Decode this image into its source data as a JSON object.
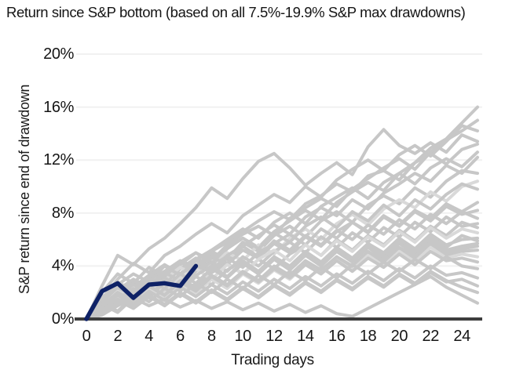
{
  "chart_data": {
    "type": "line",
    "title": "Return since S&P bottom (based on all 7.5%-19.9% S&P max drawdowns)",
    "xlabel": "Trading days",
    "ylabel": "S&P return since end of drawdown",
    "x_tick_values": [
      0,
      2,
      4,
      6,
      8,
      10,
      12,
      14,
      16,
      18,
      20,
      22,
      24
    ],
    "x_tick_labels": [
      "0",
      "2",
      "4",
      "6",
      "8",
      "10",
      "12",
      "14",
      "16",
      "18",
      "20",
      "22",
      "24"
    ],
    "y_tick_values": [
      0,
      4,
      8,
      12,
      16,
      20
    ],
    "y_tick_labels": [
      "0%",
      "4%",
      "8%",
      "12%",
      "16%",
      "20%"
    ],
    "xlim": [
      0,
      25
    ],
    "ylim": [
      0,
      20
    ],
    "grid": "horizontal",
    "legend": "none",
    "colors": {
      "historical_line": "#c7c7c7",
      "historical_line_light": "#d9d9d9",
      "highlight_line": "#0e2166",
      "axis_line": "#3d3d3d",
      "gridline": "#f1f1f1",
      "text": "#151515"
    },
    "highlight_series": {
      "role": "current-recovery",
      "days": [
        0,
        1,
        2,
        3,
        4,
        5,
        6,
        7
      ],
      "values": [
        0,
        2.1,
        2.7,
        1.6,
        2.6,
        2.7,
        2.5,
        4.0
      ]
    },
    "series_days": [
      0,
      1,
      2,
      3,
      4,
      5,
      6,
      7,
      8,
      9,
      10,
      11,
      12,
      13,
      14,
      15,
      16,
      17,
      18,
      19,
      20,
      21,
      22,
      23,
      24,
      25
    ],
    "series": [
      {
        "shade": "normal",
        "values": [
          0,
          1.2,
          2.3,
          1.8,
          3.0,
          3.6,
          4.4,
          3.9,
          5.1,
          5.8,
          6.6,
          7.4,
          8.1,
          7.5,
          8.7,
          9.3,
          10.2,
          9.6,
          10.8,
          11.2,
          10.5,
          11.8,
          12.9,
          13.6,
          14.8,
          16.0
        ]
      },
      {
        "shade": "normal",
        "values": [
          0,
          0.8,
          1.9,
          2.8,
          2.2,
          3.4,
          4.1,
          5.0,
          4.4,
          5.6,
          6.4,
          7.0,
          6.3,
          7.6,
          8.4,
          9.1,
          8.5,
          9.8,
          10.6,
          11.4,
          12.1,
          11.3,
          12.6,
          13.5,
          14.2,
          15.0
        ]
      },
      {
        "shade": "normal",
        "values": [
          0,
          1.5,
          3.0,
          4.2,
          3.5,
          4.8,
          5.5,
          6.4,
          7.2,
          6.5,
          7.8,
          8.6,
          9.4,
          8.8,
          10.0,
          9.2,
          10.5,
          11.3,
          12.0,
          11.2,
          12.4,
          13.1,
          12.3,
          13.4,
          14.6,
          14.2
        ]
      },
      {
        "shade": "normal",
        "values": [
          0,
          2.5,
          4.8,
          4.1,
          5.3,
          6.1,
          7.2,
          8.4,
          9.9,
          9.1,
          10.6,
          11.9,
          12.5,
          11.4,
          10.1,
          11.0,
          11.8,
          10.9,
          13.0,
          14.3,
          13.1,
          12.5,
          13.3,
          12.6,
          13.9,
          13.4
        ]
      },
      {
        "shade": "normal",
        "values": [
          0,
          0.5,
          1.4,
          2.2,
          3.1,
          2.6,
          3.8,
          4.6,
          4.0,
          5.3,
          6.1,
          5.4,
          6.6,
          7.4,
          8.2,
          7.5,
          8.8,
          9.6,
          10.3,
          9.7,
          11.0,
          11.8,
          12.5,
          11.7,
          12.8,
          13.2
        ]
      },
      {
        "shade": "normal",
        "values": [
          0,
          1.8,
          1.1,
          2.4,
          3.3,
          4.1,
          3.4,
          4.5,
          5.2,
          6.0,
          6.8,
          6.1,
          7.3,
          8.0,
          7.2,
          8.5,
          9.2,
          9.9,
          9.1,
          10.3,
          11.0,
          10.2,
          11.4,
          12.1,
          11.5,
          12.6
        ]
      },
      {
        "shade": "normal",
        "values": [
          0,
          0.9,
          2.0,
          1.4,
          2.6,
          3.5,
          4.3,
          3.7,
          4.9,
          4.2,
          5.5,
          6.3,
          7.1,
          6.4,
          7.7,
          8.4,
          7.8,
          9.0,
          8.3,
          9.5,
          10.2,
          11.0,
          10.4,
          11.6,
          11.0,
          12.2
        ]
      },
      {
        "shade": "normal",
        "values": [
          0,
          1.4,
          2.6,
          3.4,
          2.8,
          4.0,
          3.3,
          4.4,
          5.1,
          4.5,
          5.8,
          5.1,
          6.3,
          7.0,
          6.2,
          7.4,
          8.1,
          7.3,
          8.6,
          9.3,
          8.7,
          9.9,
          9.2,
          10.4,
          11.2,
          11.0
        ]
      },
      {
        "shade": "light",
        "values": [
          0,
          0.6,
          1.6,
          2.5,
          1.9,
          3.0,
          3.9,
          3.2,
          4.3,
          5.0,
          4.4,
          5.6,
          4.9,
          6.1,
          6.8,
          6.0,
          7.2,
          7.9,
          7.1,
          8.3,
          9.0,
          8.4,
          9.6,
          8.9,
          10.0,
          10.4
        ]
      },
      {
        "shade": "normal",
        "values": [
          0,
          2.0,
          3.4,
          2.7,
          3.9,
          3.2,
          4.3,
          5.0,
          4.2,
          5.4,
          6.1,
          5.3,
          6.5,
          5.8,
          7.0,
          7.7,
          6.9,
          8.1,
          7.4,
          8.6,
          7.8,
          9.0,
          8.3,
          9.4,
          10.2,
          9.8
        ]
      },
      {
        "shade": "normal",
        "values": [
          0,
          1.0,
          2.2,
          3.0,
          2.4,
          3.5,
          2.9,
          4.0,
          4.7,
          4.1,
          5.2,
          4.6,
          5.7,
          6.4,
          5.6,
          6.8,
          6.1,
          7.3,
          6.6,
          7.8,
          7.1,
          8.2,
          7.6,
          8.7,
          8.1,
          8.8
        ]
      },
      {
        "shade": "normal",
        "values": [
          0,
          0.4,
          1.3,
          2.1,
          2.9,
          2.3,
          3.4,
          4.1,
          3.5,
          4.6,
          3.9,
          5.0,
          5.7,
          5.0,
          6.2,
          5.5,
          6.6,
          7.3,
          6.5,
          7.7,
          7.0,
          8.1,
          7.4,
          8.5,
          7.9,
          8.2
        ]
      },
      {
        "shade": "normal",
        "values": [
          0,
          1.6,
          2.8,
          2.1,
          3.2,
          4.0,
          3.3,
          4.4,
          3.7,
          4.8,
          5.5,
          4.7,
          5.9,
          5.2,
          6.3,
          5.6,
          6.7,
          6.0,
          7.1,
          6.4,
          7.5,
          6.8,
          7.9,
          7.2,
          8.1,
          7.6
        ]
      },
      {
        "shade": "normal",
        "values": [
          0,
          0.7,
          1.8,
          2.6,
          2.0,
          3.1,
          2.5,
          3.6,
          4.3,
          3.6,
          4.7,
          4.0,
          5.1,
          5.8,
          5.0,
          6.2,
          5.4,
          6.5,
          5.8,
          6.9,
          6.2,
          7.3,
          6.6,
          7.7,
          7.0,
          7.2
        ]
      },
      {
        "shade": "normal",
        "values": [
          0,
          1.2,
          0.6,
          1.7,
          2.5,
          1.9,
          3.0,
          2.4,
          3.5,
          4.2,
          3.4,
          4.5,
          3.8,
          4.9,
          5.6,
          4.8,
          6.0,
          5.2,
          6.3,
          5.6,
          6.7,
          5.9,
          7.0,
          6.3,
          7.3,
          6.9
        ]
      },
      {
        "shade": "light",
        "values": [
          0,
          0.9,
          2.1,
          1.5,
          2.7,
          2.0,
          3.1,
          3.8,
          3.0,
          4.1,
          3.4,
          4.5,
          5.2,
          4.4,
          5.6,
          4.8,
          5.9,
          5.1,
          6.2,
          5.5,
          6.6,
          5.8,
          6.9,
          6.1,
          6.8,
          6.5
        ]
      },
      {
        "shade": "normal",
        "values": [
          0,
          1.7,
          1.0,
          2.2,
          1.6,
          2.8,
          2.1,
          3.2,
          2.6,
          3.7,
          4.4,
          3.6,
          4.7,
          4.0,
          5.1,
          4.3,
          5.4,
          4.6,
          5.7,
          5.0,
          6.1,
          5.3,
          6.4,
          5.6,
          6.0,
          6.1
        ]
      },
      {
        "shade": "normal",
        "values": [
          0,
          0.5,
          1.5,
          2.3,
          1.7,
          2.9,
          2.2,
          3.3,
          4.0,
          3.2,
          4.3,
          3.5,
          4.6,
          3.9,
          5.0,
          4.2,
          5.3,
          4.5,
          5.6,
          4.8,
          5.9,
          5.1,
          6.2,
          5.4,
          6.3,
          5.9
        ]
      },
      {
        "shade": "normal",
        "values": [
          0,
          1.3,
          2.4,
          1.8,
          2.9,
          2.3,
          3.4,
          2.7,
          3.8,
          3.1,
          4.2,
          3.4,
          4.5,
          3.7,
          4.8,
          4.0,
          5.1,
          4.3,
          5.4,
          4.6,
          5.7,
          4.9,
          6.0,
          5.2,
          5.5,
          5.7
        ]
      },
      {
        "shade": "normal",
        "values": [
          0,
          0.8,
          1.9,
          1.2,
          2.3,
          1.6,
          2.7,
          2.0,
          3.1,
          2.4,
          3.5,
          2.8,
          3.9,
          3.2,
          4.3,
          3.6,
          4.7,
          4.0,
          5.1,
          4.4,
          5.4,
          4.7,
          5.8,
          5.0,
          5.3,
          5.5
        ]
      },
      {
        "shade": "normal",
        "values": [
          0,
          1.1,
          0.5,
          1.6,
          2.4,
          1.8,
          2.9,
          2.2,
          3.3,
          2.6,
          3.6,
          2.9,
          4.0,
          3.3,
          4.4,
          3.7,
          4.7,
          3.9,
          5.0,
          4.2,
          5.3,
          4.5,
          5.6,
          4.8,
          5.1,
          5.2
        ]
      },
      {
        "shade": "light",
        "values": [
          0,
          0.6,
          1.7,
          1.1,
          2.2,
          1.5,
          2.6,
          1.9,
          3.0,
          2.3,
          3.4,
          2.7,
          3.7,
          3.0,
          4.1,
          3.4,
          4.4,
          3.7,
          4.8,
          4.0,
          5.1,
          4.3,
          5.4,
          4.6,
          4.9,
          4.7
        ]
      },
      {
        "shade": "normal",
        "values": [
          0,
          1.0,
          2.0,
          1.4,
          2.5,
          1.8,
          2.8,
          2.1,
          3.2,
          2.5,
          3.5,
          2.8,
          3.8,
          3.1,
          4.1,
          3.4,
          4.4,
          3.6,
          4.6,
          3.9,
          4.9,
          4.1,
          5.1,
          4.4,
          4.6,
          4.3
        ]
      },
      {
        "shade": "normal",
        "values": [
          0,
          0.4,
          1.2,
          2.0,
          1.3,
          2.3,
          1.7,
          2.7,
          2.0,
          3.0,
          2.3,
          3.3,
          2.6,
          3.6,
          2.9,
          3.9,
          3.1,
          4.1,
          3.4,
          4.3,
          3.6,
          4.5,
          3.8,
          4.7,
          4.0,
          3.8
        ]
      },
      {
        "shade": "normal",
        "values": [
          0,
          0.9,
          1.8,
          1.1,
          2.1,
          1.4,
          2.4,
          1.7,
          2.6,
          1.9,
          2.8,
          2.1,
          3.0,
          2.3,
          3.2,
          2.5,
          3.4,
          2.7,
          3.6,
          2.9,
          3.8,
          3.1,
          4.0,
          3.3,
          3.5,
          3.1
        ]
      },
      {
        "shade": "normal",
        "values": [
          0,
          0.5,
          1.4,
          0.8,
          1.7,
          1.0,
          1.9,
          1.2,
          2.1,
          1.4,
          2.3,
          1.6,
          2.5,
          1.8,
          2.7,
          2.0,
          2.9,
          2.2,
          3.1,
          2.4,
          3.3,
          2.6,
          3.5,
          2.8,
          3.0,
          2.5
        ]
      },
      {
        "shade": "normal",
        "values": [
          0,
          0.7,
          1.5,
          0.9,
          1.8,
          1.1,
          2.0,
          1.3,
          2.2,
          1.5,
          2.4,
          1.7,
          2.6,
          1.9,
          2.8,
          2.1,
          3.0,
          2.3,
          3.2,
          2.5,
          3.4,
          2.7,
          3.6,
          2.9,
          2.4,
          2.0
        ]
      },
      {
        "shade": "normal",
        "values": [
          0,
          0.3,
          1.0,
          1.6,
          1.0,
          1.5,
          0.9,
          1.4,
          0.8,
          1.3,
          0.7,
          1.2,
          0.6,
          1.1,
          0.5,
          1.0,
          0.4,
          0.2,
          0.8,
          1.4,
          2.0,
          2.6,
          3.2,
          2.4,
          1.8,
          1.2
        ]
      }
    ]
  }
}
